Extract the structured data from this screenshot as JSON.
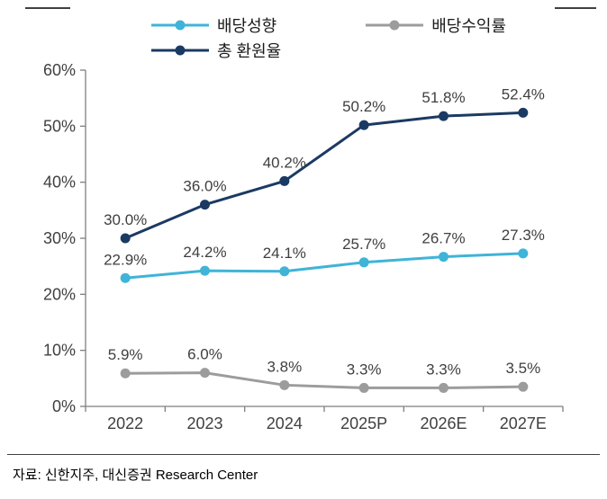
{
  "chart_data": {
    "type": "line",
    "title": "",
    "categories": [
      "2022",
      "2023",
      "2024",
      "2025P",
      "2026E",
      "2027E"
    ],
    "series": [
      {
        "name": "배당성향",
        "values": [
          22.9,
          24.2,
          24.1,
          25.7,
          26.7,
          27.3
        ],
        "color": "#3FB4D8"
      },
      {
        "name": "총 환원율",
        "values": [
          30.0,
          36.0,
          40.2,
          50.2,
          51.8,
          52.4
        ],
        "color": "#1B3A63"
      },
      {
        "name": "배당수익률",
        "values": [
          5.9,
          6.0,
          3.8,
          3.3,
          3.3,
          3.5
        ],
        "color": "#9C9C9C"
      }
    ],
    "ylim": [
      0,
      60
    ],
    "ytick_step": 10,
    "ytick_labels": [
      "0%",
      "10%",
      "20%",
      "30%",
      "40%",
      "50%",
      "60%"
    ],
    "grid": false,
    "legend_position": "top",
    "data_labels": true,
    "label_suffix": "%"
  },
  "source_note": "자료: 신한지주, 대신증권 Research Center",
  "style": {
    "axis_color": "#7F7F7F",
    "text_color": "#404040"
  }
}
